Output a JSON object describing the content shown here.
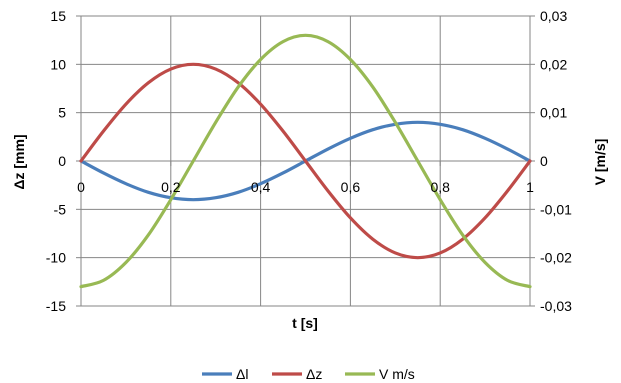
{
  "chart_data": {
    "type": "line",
    "xlabel": "t [s]",
    "ylabel": "Δz [mm]",
    "y2label": "V [m/s]",
    "xlim": [
      0,
      1
    ],
    "ylim": [
      -15,
      15
    ],
    "y2lim": [
      -0.03,
      0.03
    ],
    "grid": true,
    "legend": "bottom",
    "x_ticks": [
      0,
      0.2,
      0.4,
      0.6,
      0.8,
      1
    ],
    "x_tick_labels": [
      "0",
      "0,2",
      "0,4",
      "0,6",
      "0,8",
      "1"
    ],
    "y_ticks": [
      15,
      10,
      5,
      0,
      -5,
      -10,
      -15
    ],
    "y_tick_labels": [
      "15",
      "10",
      "5",
      "0",
      "-5",
      "-10",
      "-15"
    ],
    "y2_ticks": [
      0.03,
      0.02,
      0.01,
      0,
      -0.01,
      -0.02,
      -0.03
    ],
    "y2_tick_labels": [
      "0,03",
      "0,02",
      "0,01",
      "0",
      "-0,01",
      "-0,02",
      "-0,03"
    ],
    "x": [
      0,
      0.05,
      0.1,
      0.15,
      0.2,
      0.25,
      0.3,
      0.35,
      0.4,
      0.45,
      0.5,
      0.55,
      0.6,
      0.65,
      0.7,
      0.75,
      0.8,
      0.85,
      0.9,
      0.95,
      1
    ],
    "series": [
      {
        "name": "Δl",
        "axis": "left",
        "color": "#4a7ebb",
        "values": [
          0,
          -1.24,
          -2.35,
          -3.24,
          -3.8,
          -4.0,
          -3.8,
          -3.24,
          -2.35,
          -1.24,
          0,
          1.24,
          2.35,
          3.24,
          3.8,
          4.0,
          3.8,
          3.24,
          2.35,
          1.24,
          0
        ]
      },
      {
        "name": "Δz",
        "axis": "left",
        "color": "#be4b48",
        "values": [
          0,
          3.09,
          5.88,
          8.09,
          9.51,
          10.0,
          9.51,
          8.09,
          5.88,
          3.09,
          0,
          -3.09,
          -5.88,
          -8.09,
          -9.51,
          -10.0,
          -9.51,
          -8.09,
          -5.88,
          -3.09,
          0
        ]
      },
      {
        "name": "V m/s",
        "axis": "right",
        "color": "#98b954",
        "values": [
          -0.026,
          -0.0247,
          -0.021,
          -0.0153,
          -0.008,
          0,
          0.008,
          0.0153,
          0.021,
          0.0247,
          0.026,
          0.0247,
          0.021,
          0.0153,
          0.008,
          0,
          -0.008,
          -0.0153,
          -0.021,
          -0.0247,
          -0.026
        ]
      }
    ]
  }
}
